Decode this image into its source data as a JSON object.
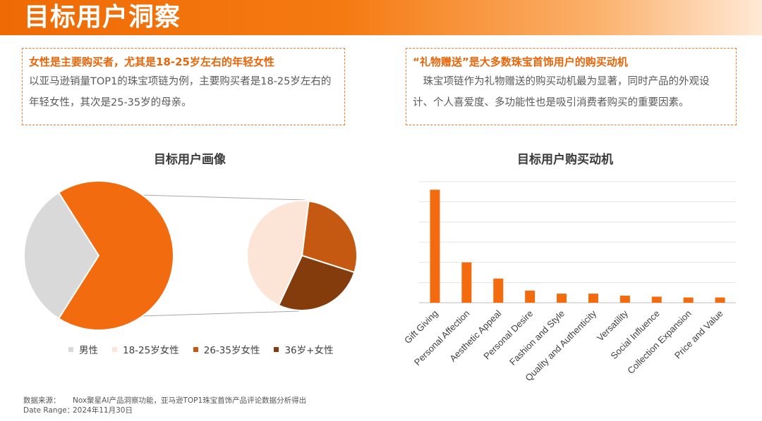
{
  "page": {
    "title": "目标用户洞察"
  },
  "insights": [
    {
      "title": "女性是主要购买者，尤其是18-25岁左右的年轻女性",
      "body": "以亚马逊销量TOP1的珠宝项链为例，主要购买者是18-25岁左右的年轻女性，其次是25-35岁的母亲。"
    },
    {
      "title": "“礼物赠送”是大多数珠宝首饰用户的购买动机",
      "body": "珠宝项链作为礼物赠送的购买动机最为显著，同时产品的外观设计、个人喜爱度、多功能性也是吸引消费者购买的重要因素。"
    }
  ],
  "footnote": {
    "source_label": "数据来源：",
    "source_text": "Nox聚星AI产品洞察功能，亚马逊TOP1珠宝首饰产品评论数据分析得出",
    "date_label": "Date Range：",
    "date_text": "2024年11月30日"
  },
  "chart_data": [
    {
      "type": "pie",
      "title": "目标用户画像",
      "main_pie": [
        {
          "label": "男性",
          "value": 32,
          "color": "#d9d9d9"
        },
        {
          "label": "女性",
          "value": 68,
          "color": "#f26b0f"
        }
      ],
      "sub_pie": [
        {
          "label": "18-25岁女性",
          "value": 45,
          "color": "#fce5d6"
        },
        {
          "label": "26-35岁女性",
          "value": 28,
          "color": "#c65911"
        },
        {
          "label": "36岁+女性",
          "value": 27,
          "color": "#843c0c"
        }
      ],
      "legend": [
        {
          "label": "男性",
          "color": "#d9d9d9"
        },
        {
          "label": "18-25岁女性",
          "color": "#fce5d6"
        },
        {
          "label": "26-35岁女性",
          "color": "#c65911"
        },
        {
          "label": "36岁+女性",
          "color": "#843c0c"
        }
      ],
      "legend_position": "bottom"
    },
    {
      "type": "bar",
      "title": "目标用户购买动机",
      "categories": [
        "Gift Giving",
        "Personal Affection",
        "Aesthetic Appeal",
        "Personal Desire",
        "Fashion and Style",
        "Quality and Authenticity",
        "Versatility",
        "Social Influence",
        "Collection Expansion",
        "Price and Value"
      ],
      "values": [
        56,
        20,
        12,
        6,
        4.5,
        4.5,
        3.5,
        3,
        2.6,
        2.6
      ],
      "ylim": [
        0,
        60
      ],
      "grid": true,
      "bar_color": "#f26b0f"
    }
  ]
}
